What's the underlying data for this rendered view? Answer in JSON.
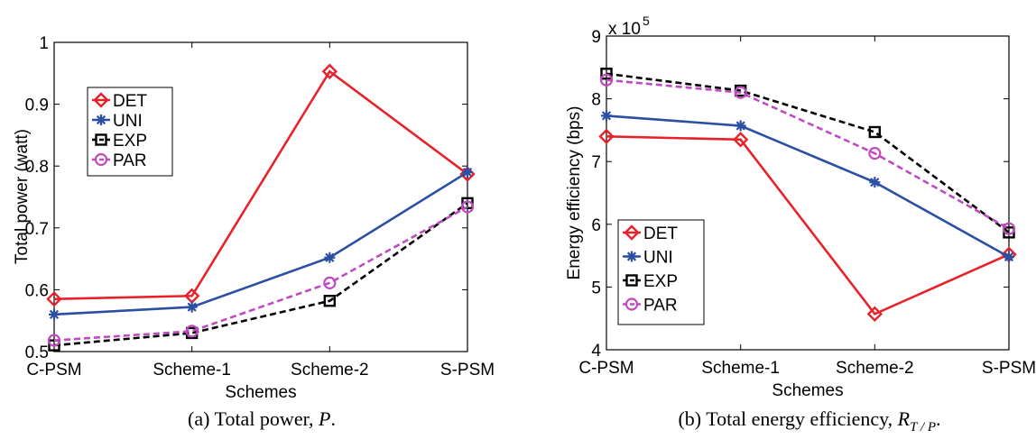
{
  "chart_data": [
    {
      "type": "line",
      "categories": [
        "C-PSM",
        "Scheme-1",
        "Scheme-2",
        "S-PSM"
      ],
      "series": [
        {
          "name": "DET",
          "values": [
            0.585,
            0.59,
            0.953,
            0.787
          ],
          "color": "#e8222a",
          "marker": "diamond",
          "dash": "solid"
        },
        {
          "name": "UNI",
          "values": [
            0.56,
            0.572,
            0.652,
            0.79
          ],
          "color": "#2a4fa3",
          "marker": "asterisk",
          "dash": "solid"
        },
        {
          "name": "EXP",
          "values": [
            0.51,
            0.53,
            0.582,
            0.74
          ],
          "color": "#000000",
          "marker": "square",
          "dash": "dashed"
        },
        {
          "name": "PAR",
          "values": [
            0.518,
            0.533,
            0.611,
            0.734
          ],
          "color": "#c04bc0",
          "marker": "circle",
          "dash": "dashed"
        }
      ],
      "xlabel": "Schemes",
      "ylabel": "Total power (watt)",
      "ylim": [
        0.5,
        1
      ],
      "yticks": [
        "0.5",
        "0.6",
        "0.7",
        "0.8",
        "0.9",
        "1"
      ],
      "multiplier": "",
      "legend_position": "top-left",
      "caption_prefix": "(a)  Total power, ",
      "caption_symbol": "P",
      "caption_suffix": "."
    },
    {
      "type": "line",
      "categories": [
        "C-PSM",
        "Scheme-1",
        "Scheme-2",
        "S-PSM"
      ],
      "series": [
        {
          "name": "DET",
          "values": [
            7.4,
            7.35,
            4.57,
            5.52
          ],
          "color": "#e8222a",
          "marker": "diamond",
          "dash": "solid"
        },
        {
          "name": "UNI",
          "values": [
            7.73,
            7.57,
            6.67,
            5.48
          ],
          "color": "#2a4fa3",
          "marker": "asterisk",
          "dash": "solid"
        },
        {
          "name": "EXP",
          "values": [
            8.4,
            8.13,
            7.47,
            5.87
          ],
          "color": "#000000",
          "marker": "square",
          "dash": "dashed"
        },
        {
          "name": "PAR",
          "values": [
            8.3,
            8.1,
            7.13,
            5.93
          ],
          "color": "#c04bc0",
          "marker": "circle",
          "dash": "dashed"
        }
      ],
      "xlabel": "Schemes",
      "ylabel": "Energy efficiency (bps)",
      "ylim": [
        4,
        9
      ],
      "yticks": [
        "4",
        "5",
        "6",
        "7",
        "8",
        "9"
      ],
      "multiplier": "x 10",
      "multiplier_exp": "5",
      "legend_position": "bottom-left",
      "caption_prefix": "(b)  Total energy efficiency, ",
      "caption_symbol": "R",
      "caption_subscript": "T / P",
      "caption_suffix": "."
    }
  ]
}
